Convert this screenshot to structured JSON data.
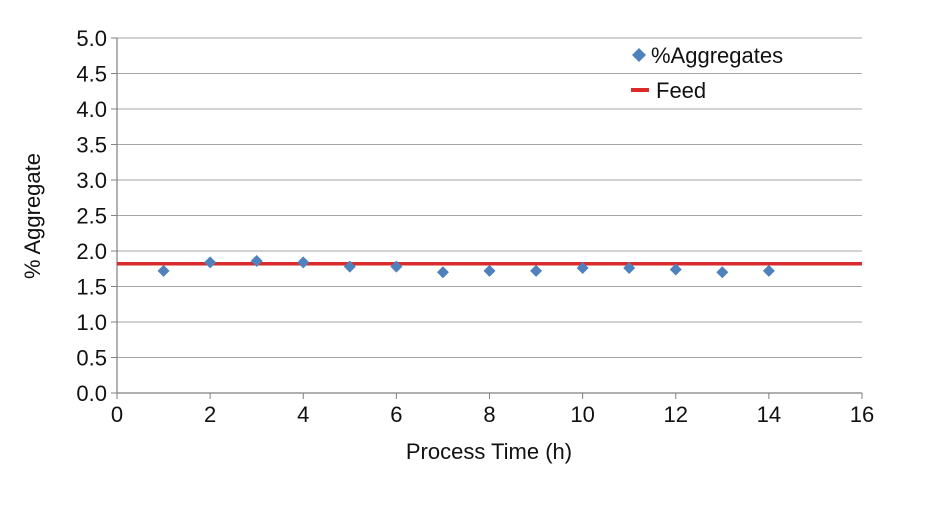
{
  "chart_data": {
    "type": "scatter",
    "title": "",
    "xlabel": "Process Time (h)",
    "ylabel": "% Aggregate",
    "xlim": [
      0,
      16
    ],
    "ylim": [
      0,
      5.0
    ],
    "x_ticks": [
      "0",
      "2",
      "4",
      "6",
      "8",
      "10",
      "12",
      "14",
      "16"
    ],
    "y_ticks": [
      "0.0",
      "0.5",
      "1.0",
      "1.5",
      "2.0",
      "2.5",
      "3.0",
      "3.5",
      "4.0",
      "4.5",
      "5.0"
    ],
    "grid": "horizontal",
    "legend_position": "top-right",
    "series": [
      {
        "name": "%Aggregates",
        "marker": "diamond",
        "color": "#4f81bd",
        "x": [
          1,
          2,
          3,
          4,
          5,
          6,
          7,
          8,
          9,
          10,
          11,
          12,
          13,
          14
        ],
        "y": [
          1.72,
          1.84,
          1.86,
          1.84,
          1.78,
          1.78,
          1.7,
          1.72,
          1.72,
          1.76,
          1.76,
          1.74,
          1.7,
          1.72
        ]
      },
      {
        "name": "Feed",
        "type": "hline",
        "color": "#d92b2b",
        "y": 1.82
      }
    ]
  }
}
